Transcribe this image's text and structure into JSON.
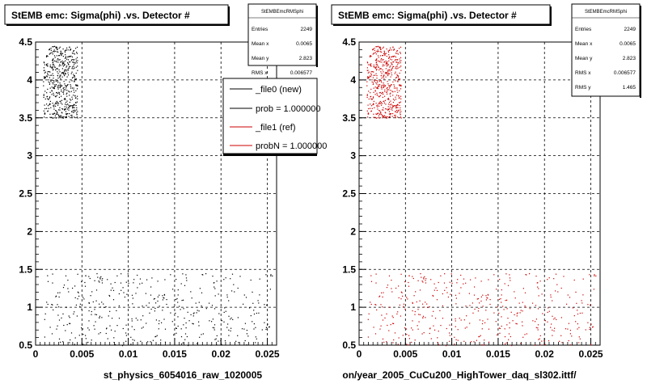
{
  "panels": [
    {
      "title": "StEMB emc: Sigma(phi) .vs. Detector #",
      "xlabel": "st_physics_6054016_raw_1020005",
      "marker_color": "#000000",
      "stats": {
        "name": "StEMBEmcRMSphi",
        "rows": [
          {
            "label": "Entries",
            "value": "2249"
          },
          {
            "label": "Mean x",
            "value": "0.0065"
          },
          {
            "label": "Mean y",
            "value": "2.823"
          },
          {
            "label": "RMS x",
            "value": "0.006577"
          }
        ]
      },
      "legend": [
        {
          "label": "_file0 (new)",
          "color": "#000000"
        },
        {
          "label": "prob = 1.000000",
          "color": "#000000"
        },
        {
          "label": "_file1 (ref)",
          "color": "#cc0000"
        },
        {
          "label": "probN = 1.000000",
          "color": "#cc0000"
        }
      ]
    },
    {
      "title": "StEMB emc: Sigma(phi) .vs. Detector #",
      "xlabel": "on/year_2005_CuCu200_HighTower_daq_sl302.ittf/",
      "marker_color": "#cc0000",
      "stats": {
        "name": "StEMBEmcRMSphi",
        "rows": [
          {
            "label": "Entries",
            "value": "2249"
          },
          {
            "label": "Mean x",
            "value": "0.0065"
          },
          {
            "label": "Mean y",
            "value": "2.823"
          },
          {
            "label": "RMS x",
            "value": "0.006577"
          },
          {
            "label": "RMS y",
            "value": "1.465"
          }
        ]
      }
    }
  ],
  "footer_text": "",
  "chart_data": [
    {
      "type": "scatter",
      "title": "StEMB emc: Sigma(phi) .vs. Detector #",
      "xlabel": "st_physics_6054016_raw_1020005",
      "ylabel": "",
      "xlim": [
        0,
        0.026
      ],
      "ylim": [
        0.5,
        4.5
      ],
      "xticks": [
        "0",
        "0.005",
        "0.01",
        "0.015",
        "0.02",
        "0.025"
      ],
      "yticks": [
        "0.5",
        "1",
        "1.5",
        "2",
        "2.5",
        "3",
        "3.5",
        "4",
        "4.5"
      ],
      "grid": true,
      "series": [
        {
          "name": "_file0 (new)",
          "color": "#000000",
          "regions": [
            {
              "x": [
                0.0008,
                0.0045
              ],
              "y": [
                3.5,
                4.45
              ],
              "count": 520
            },
            {
              "x": [
                0.0008,
                0.0255
              ],
              "y": [
                0.5,
                1.45
              ],
              "count": 420
            }
          ]
        }
      ]
    },
    {
      "type": "scatter",
      "title": "StEMB emc: Sigma(phi) .vs. Detector #",
      "xlabel": "on/year_2005_CuCu200_HighTower_daq_sl302.ittf/",
      "ylabel": "",
      "xlim": [
        0,
        0.026
      ],
      "ylim": [
        0.5,
        4.5
      ],
      "xticks": [
        "0",
        "0.005",
        "0.01",
        "0.015",
        "0.02",
        "0.025"
      ],
      "yticks": [
        "0.5",
        "1",
        "1.5",
        "2",
        "2.5",
        "3",
        "3.5",
        "4",
        "4.5"
      ],
      "grid": true,
      "series": [
        {
          "name": "_file1 (ref)",
          "color": "#cc0000",
          "regions": [
            {
              "x": [
                0.0008,
                0.0045
              ],
              "y": [
                3.5,
                4.45
              ],
              "count": 520
            },
            {
              "x": [
                0.0008,
                0.0255
              ],
              "y": [
                0.5,
                1.45
              ],
              "count": 420
            }
          ]
        }
      ]
    }
  ]
}
